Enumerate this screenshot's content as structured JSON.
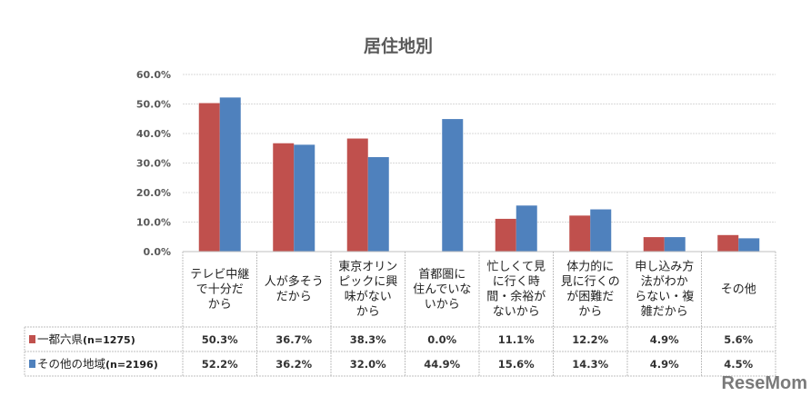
{
  "chart_data": {
    "type": "bar",
    "title": "居住地別",
    "categories": [
      [
        "テレビ中継",
        "で十分だ",
        "から"
      ],
      [
        "人が多そう",
        "だから"
      ],
      [
        "東京オリン",
        "ピックに興",
        "味がない",
        "から"
      ],
      [
        "首都圏に",
        "住んでいな",
        "いから"
      ],
      [
        "忙しくて見",
        "に行く時",
        "間・余裕が",
        "ないから"
      ],
      [
        "体力的に",
        "見に行くの",
        "が困難だ",
        "から"
      ],
      [
        "申し込み方",
        "法がわか",
        "らない・複",
        "雑だから"
      ],
      [
        "その他"
      ]
    ],
    "series": [
      {
        "name": "一都六県",
        "n_label": "(n=1275)",
        "color": "#c0504d",
        "values": [
          50.3,
          36.7,
          38.3,
          0.0,
          11.1,
          12.2,
          4.9,
          5.6
        ],
        "labels": [
          "50.3%",
          "36.7%",
          "38.3%",
          "0.0%",
          "11.1%",
          "12.2%",
          "4.9%",
          "5.6%"
        ]
      },
      {
        "name": "その他の地域",
        "n_label": "(n=2196)",
        "color": "#4f81bd",
        "values": [
          52.2,
          36.2,
          32.0,
          44.9,
          15.6,
          14.3,
          4.9,
          4.5
        ],
        "labels": [
          "52.2%",
          "36.2%",
          "32.0%",
          "44.9%",
          "15.6%",
          "14.3%",
          "4.9%",
          "4.5%"
        ]
      }
    ],
    "yticks": [
      "0.0%",
      "10.0%",
      "20.0%",
      "30.0%",
      "40.0%",
      "50.0%",
      "60.0%"
    ],
    "ylim": [
      0,
      60
    ],
    "grid": true,
    "legend": "data-table"
  },
  "watermark": "ReseMom"
}
